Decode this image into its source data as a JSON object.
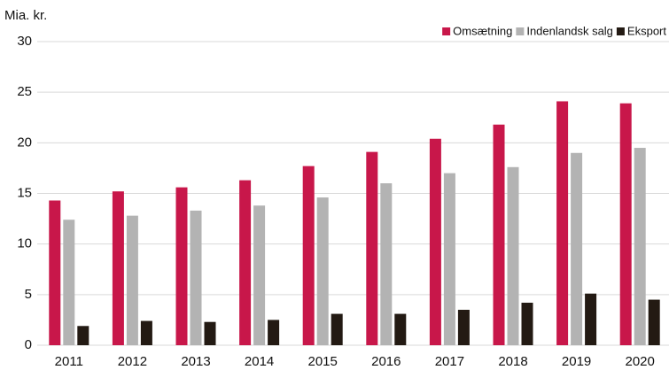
{
  "chart_data": {
    "type": "bar",
    "y_axis_label": "Mia. kr.",
    "categories": [
      "2011",
      "2012",
      "2013",
      "2014",
      "2015",
      "2016",
      "2017",
      "2018",
      "2019",
      "2020"
    ],
    "series": [
      {
        "name": "Omsætning",
        "color": "#c8174a",
        "values": [
          14.3,
          15.2,
          15.6,
          16.3,
          17.7,
          19.1,
          20.4,
          21.8,
          24.1,
          23.9
        ]
      },
      {
        "name": "Indenlandsk salg",
        "color": "#b3b3b3",
        "values": [
          12.4,
          12.8,
          13.3,
          13.8,
          14.6,
          16.0,
          17.0,
          17.6,
          19.0,
          19.5
        ]
      },
      {
        "name": "Eksport",
        "color": "#231a13",
        "values": [
          1.9,
          2.4,
          2.3,
          2.5,
          3.1,
          3.1,
          3.5,
          4.2,
          5.1,
          4.5
        ]
      }
    ],
    "ylim": [
      0,
      30
    ],
    "yticks": [
      0,
      5,
      10,
      15,
      20,
      25,
      30
    ],
    "grid": true,
    "legend": "top-right"
  }
}
